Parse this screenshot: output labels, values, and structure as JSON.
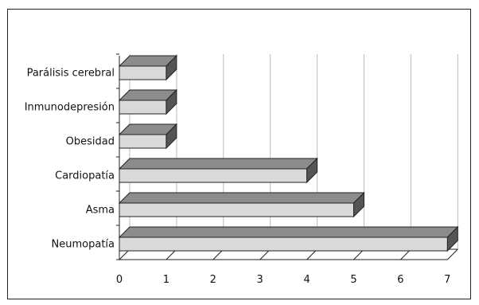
{
  "chart_data": {
    "type": "bar",
    "orientation": "horizontal",
    "style": "3d",
    "categories": [
      "Neumopatía",
      "Asma",
      "Cardiopatía",
      "Obesidad",
      "Inmunodepresión",
      "Parálisis cerebral"
    ],
    "values": [
      7,
      5,
      4,
      1,
      1,
      1
    ],
    "xlim": [
      0,
      7
    ],
    "xticks": [
      "0",
      "1",
      "2",
      "3",
      "4",
      "5",
      "6",
      "7"
    ],
    "grid": true,
    "legend": "none",
    "title": "",
    "xlabel": "",
    "ylabel": "",
    "colors": {
      "bar_front": "#d9d9d9",
      "bar_top": "#8c8c8c",
      "bar_side": "#555555",
      "grid": "#bdbdbd"
    }
  }
}
